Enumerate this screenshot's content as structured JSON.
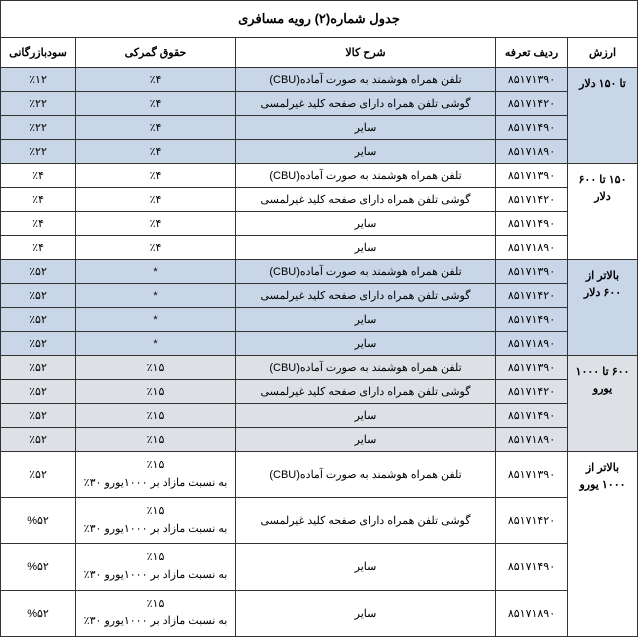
{
  "title": "جدول شماره(۲) رویه مسافری",
  "headers": {
    "arzesh": "ارزش",
    "tariff": "ردیف تعرفه",
    "desc": "شرح کالا",
    "duty": "حقوق گمرکی",
    "comm": "سودبازرگانی"
  },
  "groups": [
    {
      "label_line1": "تا ۱۵۰ دلار",
      "cls": "blue",
      "rows": [
        {
          "tariff": "۸۵۱۷۱۳۹۰",
          "desc": "تلفن همراه هوشمند به صورت آماده(CBU)",
          "duty": "٪۴",
          "comm": "٪۱۲"
        },
        {
          "tariff": "۸۵۱۷۱۴۲۰",
          "desc": "گوشی تلفن همراه دارای صفحه کلید غیرلمسی",
          "duty": "٪۴",
          "comm": "٪۲۲"
        },
        {
          "tariff": "۸۵۱۷۱۴۹۰",
          "desc": "سایر",
          "duty": "٪۴",
          "comm": "٪۲۲"
        },
        {
          "tariff": "۸۵۱۷۱۸۹۰",
          "desc": "سایر",
          "duty": "٪۴",
          "comm": "٪۲۲"
        }
      ]
    },
    {
      "label_line1": "۱۵۰ تا ۶۰۰",
      "label_line2": "دلار",
      "cls": "white",
      "rows": [
        {
          "tariff": "۸۵۱۷۱۳۹۰",
          "desc": "تلفن همراه هوشمند به صورت آماده(CBU)",
          "duty": "٪۴",
          "comm": "٪۴"
        },
        {
          "tariff": "۸۵۱۷۱۴۲۰",
          "desc": "گوشی تلفن همراه دارای صفحه کلید غیرلمسی",
          "duty": "٪۴",
          "comm": "٪۴"
        },
        {
          "tariff": "۸۵۱۷۱۴۹۰",
          "desc": "سایر",
          "duty": "٪۴",
          "comm": "٪۴"
        },
        {
          "tariff": "۸۵۱۷۱۸۹۰",
          "desc": "سایر",
          "duty": "٪۴",
          "comm": "٪۴"
        }
      ]
    },
    {
      "label_line1": "بالاتر از",
      "label_line2": "۶۰۰ دلار",
      "cls": "blue",
      "rows": [
        {
          "tariff": "۸۵۱۷۱۳۹۰",
          "desc": "تلفن همراه هوشمند به صورت آماده(CBU)",
          "duty": "*",
          "comm": "٪۵۲"
        },
        {
          "tariff": "۸۵۱۷۱۴۲۰",
          "desc": "گوشی تلفن همراه دارای صفحه کلید غیرلمسی",
          "duty": "*",
          "comm": "٪۵۲"
        },
        {
          "tariff": "۸۵۱۷۱۴۹۰",
          "desc": "سایر",
          "duty": "*",
          "comm": "٪۵۲"
        },
        {
          "tariff": "۸۵۱۷۱۸۹۰",
          "desc": "سایر",
          "duty": "*",
          "comm": "٪۵۲"
        }
      ]
    },
    {
      "label_line1": "۶۰۰ تا ۱۰۰۰",
      "label_line2": "یورو",
      "cls": "gray",
      "rows": [
        {
          "tariff": "۸۵۱۷۱۳۹۰",
          "desc": "تلفن همراه هوشمند به صورت آماده(CBU)",
          "duty": "٪۱۵",
          "comm": "٪۵۲"
        },
        {
          "tariff": "۸۵۱۷۱۴۲۰",
          "desc": "گوشی تلفن همراه دارای صفحه کلید غیرلمسی",
          "duty": "٪۱۵",
          "comm": "٪۵۲"
        },
        {
          "tariff": "۸۵۱۷۱۴۹۰",
          "desc": "سایر",
          "duty": "٪۱۵",
          "comm": "٪۵۲"
        },
        {
          "tariff": "۸۵۱۷۱۸۹۰",
          "desc": "سایر",
          "duty": "٪۱۵",
          "comm": "٪۵۲"
        }
      ]
    },
    {
      "label_line1": "بالاتر از",
      "label_line2": "۱۰۰۰ یورو",
      "cls": "white",
      "rows": [
        {
          "tariff": "۸۵۱۷۱۳۹۰",
          "desc": "تلفن همراه هوشمند به صورت آماده(CBU)",
          "duty_l1": "٪۱۵",
          "duty_l2": "به نسبت  مازاد بر ۱۰۰۰یورو  ۳۰٪",
          "comm": "٪۵۲"
        },
        {
          "tariff": "۸۵۱۷۱۴۲۰",
          "desc": "گوشی تلفن همراه دارای صفحه کلید غیرلمسی",
          "duty_l1": "٪۱۵",
          "duty_l2": "به نسبت  مازاد بر ۱۰۰۰یورو  ۳۰٪",
          "comm": "%۵۲"
        },
        {
          "tariff": "۸۵۱۷۱۴۹۰",
          "desc": "سایر",
          "duty_l1": "٪۱۵",
          "duty_l2": "به نسبت  مازاد بر ۱۰۰۰یورو  ۳۰٪",
          "comm": "%۵۲"
        },
        {
          "tariff": "۸۵۱۷۱۸۹۰",
          "desc": "سایر",
          "duty_l1": "٪۱۵",
          "duty_l2": "به نسبت  مازاد بر ۱۰۰۰یورو  ۳۰٪",
          "comm": "%۵۲"
        }
      ]
    }
  ]
}
